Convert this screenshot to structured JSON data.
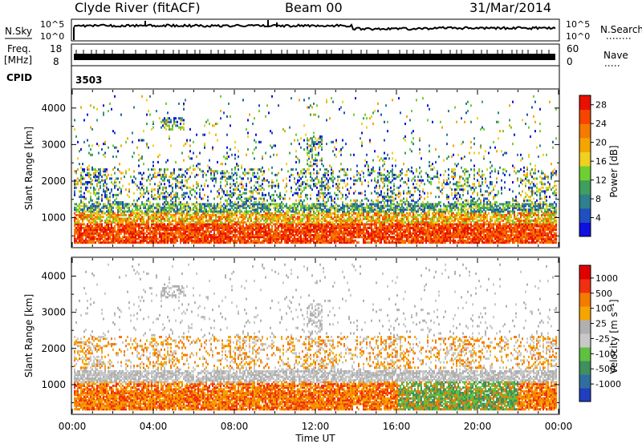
{
  "header": {
    "title": "Clyde River (fitACF)",
    "beam": "Beam 00",
    "date": "31/Mar/2014"
  },
  "top_strip": {
    "nsky_label": "N.Sky",
    "nsky_ticks": [
      "10^5",
      "10^0"
    ],
    "nsearch_label": "N.Search",
    "nsearch_ticks": [
      "10^5",
      "10^0"
    ],
    "freq_label_line1": "Freq.",
    "freq_label_line2": "[MHz]",
    "freq_ticks": [
      "18",
      "8"
    ],
    "nave_label": "Nave",
    "nave_ticks": [
      "60",
      "0"
    ],
    "cpid_label": "CPID",
    "cpid_value": "3503"
  },
  "colors": {
    "power_scale": [
      "#1010e0",
      "#2050c0",
      "#2f7f8f",
      "#3f9f5f",
      "#6fcf30",
      "#f0d020",
      "#f5a500",
      "#f57a00",
      "#f54500",
      "#e81000"
    ],
    "velocity_scale": [
      "#1f3fbf",
      "#2f6fa0",
      "#3f8f5f",
      "#60c040",
      "#c8c8c8",
      "#b0b0b0",
      "#f5a500",
      "#f57a00",
      "#f03010",
      "#e00000"
    ]
  },
  "chart_data": [
    {
      "type": "heatmap",
      "panel": "power",
      "ylabel": "Slant Range [km]",
      "yticks": [
        "1000",
        "2000",
        "3000",
        "4000"
      ],
      "ylim": [
        200,
        4500
      ],
      "xticks": [
        "00:00",
        "04:00",
        "08:00",
        "12:00",
        "16:00",
        "20:00",
        "00:00"
      ],
      "xlim_hours": [
        0,
        24
      ],
      "colorbar_label": "Power [dB]",
      "colorbar_ticks": [
        "4",
        "8",
        "12",
        "16",
        "20",
        "24",
        "28"
      ],
      "colorbar_range": [
        0,
        30
      ],
      "bands_km": [
        {
          "from": 400,
          "to": 900,
          "level": "strong"
        },
        {
          "from": 900,
          "to": 1400,
          "level": "moderate"
        },
        {
          "from": 1400,
          "to": 2400,
          "level": "weak-scattered"
        },
        {
          "from": 2400,
          "to": 4400,
          "level": "sparse"
        }
      ]
    },
    {
      "type": "heatmap",
      "panel": "velocity",
      "ylabel": "Slant Range [km]",
      "yticks": [
        "1000",
        "2000",
        "3000",
        "4000"
      ],
      "ylim": [
        200,
        4500
      ],
      "xticks": [
        "00:00",
        "04:00",
        "08:00",
        "12:00",
        "16:00",
        "20:00",
        "00:00"
      ],
      "xlim_hours": [
        0,
        24
      ],
      "xlabel": "Time UT",
      "colorbar_label": "Velocity [m s⁻¹]",
      "colorbar_ticks": [
        "1000",
        "500",
        "100",
        "25",
        "-25",
        "-100",
        "-500",
        "-1000"
      ],
      "colorbar_range": [
        -1000,
        1000
      ]
    }
  ]
}
